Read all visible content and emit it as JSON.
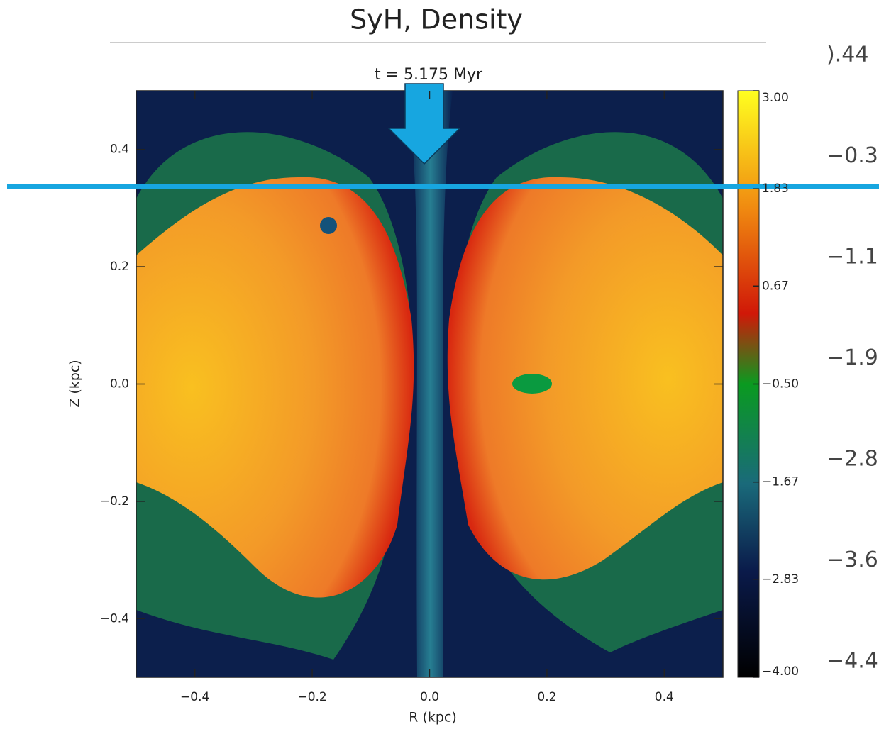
{
  "chart_data": {
    "type": "heatmap",
    "title": "SyH, Density",
    "subtitle": "t = 5.175 Myr",
    "x_label": "R (kpc)",
    "y_label": "Z (kpc)",
    "xlim": [
      -0.5,
      0.5
    ],
    "ylim": [
      -0.5,
      0.5
    ],
    "xticks": [
      {
        "value": -0.4,
        "label": "−0.4"
      },
      {
        "value": -0.2,
        "label": "−0.2"
      },
      {
        "value": 0,
        "label": "0.0"
      },
      {
        "value": 0.2,
        "label": "0.2"
      },
      {
        "value": 0.4,
        "label": "0.4"
      }
    ],
    "yticks": [
      {
        "value": -0.4,
        "label": "−0.4"
      },
      {
        "value": -0.2,
        "label": "−0.2"
      },
      {
        "value": 0,
        "label": "0.0"
      },
      {
        "value": 0.2,
        "label": "0.2"
      },
      {
        "value": 0.4,
        "label": "0.4"
      }
    ],
    "clim": [
      -4,
      3
    ],
    "cticks": [
      {
        "value": 3,
        "label": "3.00"
      },
      {
        "value": 1.83,
        "label": "1.83"
      },
      {
        "value": 0.67,
        "label": "0.67"
      },
      {
        "value": -0.5,
        "label": "−0.50"
      },
      {
        "value": -1.67,
        "label": "−1.67"
      },
      {
        "value": -2.83,
        "label": "−2.83"
      },
      {
        "value": -4,
        "label": "−4.00"
      }
    ],
    "background_fragments": [
      ").44",
      "−0.3",
      "−1.1",
      "−1.9",
      "−2.8",
      "−3.6",
      "−4.4"
    ]
  }
}
